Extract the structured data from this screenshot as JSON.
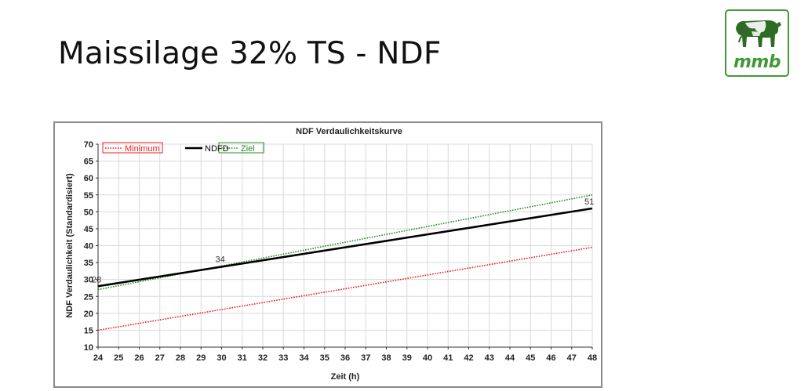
{
  "slide": {
    "title": "Maissilage 32% TS - NDF"
  },
  "logo": {
    "text": "mmb",
    "color": "#3f9a35",
    "icon": "cow-icon"
  },
  "chart_data": {
    "type": "line",
    "title": "NDF Verdaulichkeitskurve",
    "xlabel": "Zeit (h)",
    "ylabel": "NDF Verdaulichkeit (Standardisiert)",
    "xlim": [
      24,
      48
    ],
    "ylim": [
      10,
      70
    ],
    "x_ticks": [
      24,
      25,
      26,
      27,
      28,
      29,
      30,
      31,
      32,
      33,
      34,
      35,
      36,
      37,
      38,
      39,
      40,
      41,
      42,
      43,
      44,
      45,
      46,
      47,
      48
    ],
    "y_ticks": [
      10,
      15,
      20,
      25,
      30,
      35,
      40,
      45,
      50,
      55,
      60,
      65,
      70
    ],
    "grid": true,
    "legend_position": "top-left",
    "series": [
      {
        "name": "Minimum",
        "color": "#e8201f",
        "style": "dotted",
        "x": [
          24,
          48
        ],
        "y": [
          15,
          39.5
        ]
      },
      {
        "name": "NDFD",
        "color": "#000000",
        "style": "solid",
        "x": [
          24,
          48
        ],
        "y": [
          28,
          51
        ]
      },
      {
        "name": "Ziel",
        "color": "#2e8b2e",
        "style": "dotted",
        "x": [
          24,
          48
        ],
        "y": [
          27,
          55
        ]
      }
    ],
    "annotations": [
      {
        "x": 24,
        "y": 28,
        "text": "28"
      },
      {
        "x": 30,
        "y": 34,
        "text": "34"
      },
      {
        "x": 48,
        "y": 51,
        "text": "51"
      }
    ]
  }
}
